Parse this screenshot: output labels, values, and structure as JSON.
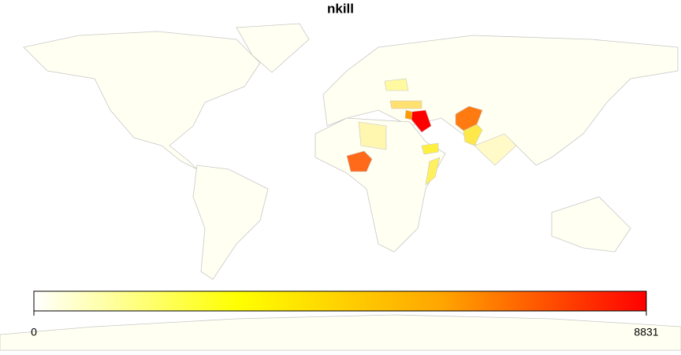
{
  "chart_data": {
    "type": "map",
    "title": "nkill",
    "colorbar": {
      "lim": [
        0,
        8831
      ],
      "ticks": [
        0,
        8831
      ],
      "colors": [
        "#ffffff",
        "#ffff00",
        "#ffa500",
        "#ff0000"
      ]
    }
  }
}
